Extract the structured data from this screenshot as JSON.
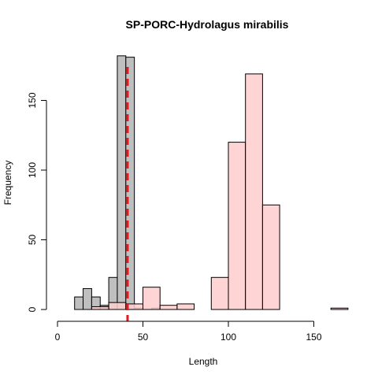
{
  "chart_data": {
    "type": "histogram",
    "title": "SP-PORC-Hydrolagus mirabilis",
    "xlabel": "Length",
    "ylabel": "Frequency",
    "xlim": [
      0,
      170
    ],
    "ylim": [
      0,
      185
    ],
    "x_ticks": [
      0,
      50,
      100,
      150
    ],
    "y_ticks": [
      0,
      50,
      100,
      150
    ],
    "series": [
      {
        "fill": "#bfbfbf",
        "bins": [
          {
            "x0": 10,
            "x1": 15,
            "count": 9
          },
          {
            "x0": 15,
            "x1": 20,
            "count": 15
          },
          {
            "x0": 20,
            "x1": 25,
            "count": 9
          },
          {
            "x0": 25,
            "x1": 30,
            "count": 3
          },
          {
            "x0": 30,
            "x1": 35,
            "count": 23
          },
          {
            "x0": 35,
            "x1": 40,
            "count": 182
          },
          {
            "x0": 40,
            "x1": 45,
            "count": 181
          },
          {
            "x0": 45,
            "x1": 50,
            "count": 1
          },
          {
            "x0": 55,
            "x1": 60,
            "count": 1
          }
        ]
      },
      {
        "fill": "#ffcccc",
        "bins": [
          {
            "x0": 20,
            "x1": 30,
            "count": 2
          },
          {
            "x0": 30,
            "x1": 40,
            "count": 5
          },
          {
            "x0": 40,
            "x1": 50,
            "count": 4
          },
          {
            "x0": 50,
            "x1": 60,
            "count": 16
          },
          {
            "x0": 60,
            "x1": 70,
            "count": 3
          },
          {
            "x0": 70,
            "x1": 80,
            "count": 4
          },
          {
            "x0": 90,
            "x1": 100,
            "count": 23
          },
          {
            "x0": 100,
            "x1": 110,
            "count": 120
          },
          {
            "x0": 110,
            "x1": 120,
            "count": 169
          },
          {
            "x0": 120,
            "x1": 130,
            "count": 75
          },
          {
            "x0": 130,
            "x1": 160,
            "count": 0
          },
          {
            "x0": 160,
            "x1": 170,
            "count": 1
          }
        ]
      }
    ],
    "reference_line": {
      "x": 41,
      "color": "#e41a1c",
      "style": "dashed"
    }
  }
}
